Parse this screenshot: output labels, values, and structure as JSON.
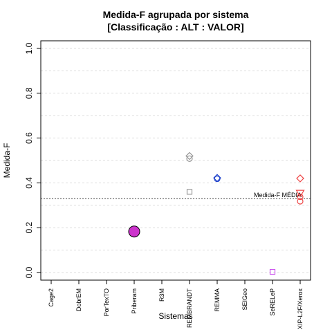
{
  "chart_data": {
    "type": "scatter",
    "title_line1": "Medida-F agrupada por sistema",
    "title_line2": "[Classificação : ALT : VALOR]",
    "xlabel": "Sistemas",
    "ylabel": "Medida-F",
    "ylim": [
      0,
      1
    ],
    "yticks": [
      "0.0",
      "0.2",
      "0.4",
      "0.6",
      "0.8",
      "1.0"
    ],
    "ytick_values": [
      0,
      0.2,
      0.4,
      0.6,
      0.8,
      1.0
    ],
    "grid": true,
    "categories": [
      "Cage2",
      "DobrEM",
      "PorTexTO",
      "Priberam",
      "R3M",
      "REMBRANDT",
      "REMMA",
      "SEIGeo",
      "SeRELeP",
      "XIP-L2F/Xerox"
    ],
    "reference_line": {
      "label": "Medida-F MÉDIA",
      "value": 0.33
    },
    "points": [
      {
        "category": "Priberam",
        "y": 0.183,
        "shape": "circle-filled",
        "color": "#cc33cc",
        "size": "large"
      },
      {
        "category": "REMBRANDT",
        "y": 0.52,
        "shape": "diamond",
        "color": "#999999"
      },
      {
        "category": "REMBRANDT",
        "y": 0.508,
        "shape": "circle",
        "color": "#999999"
      },
      {
        "category": "REMBRANDT",
        "y": 0.36,
        "shape": "square",
        "color": "#999999"
      },
      {
        "category": "REMMA",
        "y": 0.422,
        "shape": "diamond",
        "color": "#2244cc"
      },
      {
        "category": "REMMA",
        "y": 0.418,
        "shape": "circle",
        "color": "#2244cc"
      },
      {
        "category": "SeRELeP",
        "y": 0.003,
        "shape": "square",
        "color": "#cc55ee"
      },
      {
        "category": "XIP-L2F/Xerox",
        "y": 0.42,
        "shape": "diamond",
        "color": "#ee4444"
      },
      {
        "category": "XIP-L2F/Xerox",
        "y": 0.355,
        "shape": "triangle-down",
        "color": "#ee4444"
      },
      {
        "category": "XIP-L2F/Xerox",
        "y": 0.338,
        "shape": "circle",
        "color": "#ee4444"
      },
      {
        "category": "XIP-L2F/Xerox",
        "y": 0.318,
        "shape": "circle",
        "color": "#ee4444"
      }
    ]
  }
}
